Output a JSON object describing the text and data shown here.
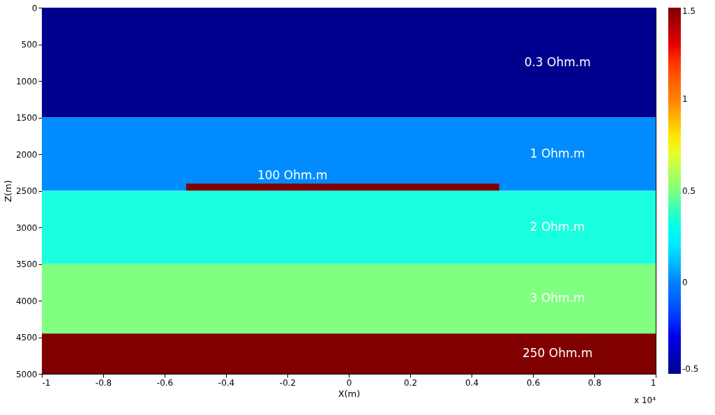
{
  "chart_data": {
    "type": "line",
    "xlabel": "X(m)",
    "ylabel": "Z(m)",
    "xlim": [
      -1,
      1
    ],
    "xticks": [
      -1,
      -0.8,
      -0.6,
      -0.4,
      -0.2,
      0,
      0.2,
      0.4,
      0.6,
      0.8,
      1
    ],
    "ylim": [
      5000,
      0
    ],
    "yticks": [
      0,
      500,
      1000,
      1500,
      2000,
      2500,
      3000,
      3500,
      4000,
      4500,
      5000
    ],
    "grid": false,
    "marker": "none",
    "bands": [
      {
        "axis": "y",
        "from": 0,
        "to": 1500,
        "label": "0.3 Ohm.m",
        "color": "#00008f"
      },
      {
        "axis": "y",
        "from": 1500,
        "to": 2500,
        "label": "1 Ohm.m",
        "color": "#008cff"
      },
      {
        "axis": "y",
        "from": 2500,
        "to": 3500,
        "label": "2 Ohm.m",
        "color": "#1affe0"
      },
      {
        "axis": "y",
        "from": 3500,
        "to": 4450,
        "label": "3 Ohm.m",
        "color": "#80ff80"
      },
      {
        "axis": "y",
        "from": 4450,
        "to": 5000,
        "label": "250 Ohm.m",
        "color": "#800000"
      }
    ],
    "series": [
      {
        "name": "100 Ohm.m",
        "color": "#800000",
        "x": [
          -0.53,
          0.49
        ],
        "values": [
          2450,
          2450
        ]
      }
    ],
    "clim": [
      -0.5,
      1.5
    ],
    "cticks": [
      -0.5,
      0,
      0.5,
      1,
      1.5
    ],
    "annotations": [
      "x 10⁴"
    ]
  }
}
